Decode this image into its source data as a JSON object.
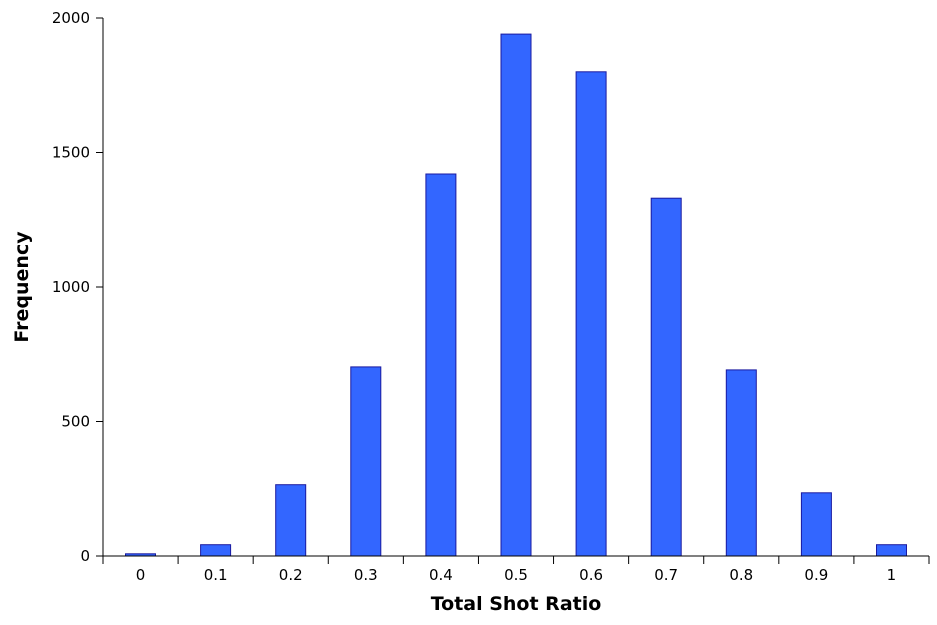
{
  "chart_data": {
    "type": "bar",
    "categories": [
      "0",
      "0.1",
      "0.2",
      "0.3",
      "0.4",
      "0.5",
      "0.6",
      "0.7",
      "0.8",
      "0.9",
      "1"
    ],
    "values": [
      8,
      42,
      265,
      703,
      1420,
      1940,
      1800,
      1330,
      692,
      235,
      42
    ],
    "xlabel": "Total Shot Ratio",
    "ylabel": "Frequency",
    "ylim": [
      0,
      2000
    ],
    "yticks": [
      0,
      500,
      1000,
      1500,
      2000
    ],
    "bar_color": "#3366ff",
    "bar_edge_color": "#1a1aa0",
    "grid": false
  }
}
